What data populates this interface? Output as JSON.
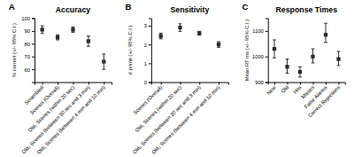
{
  "chart_data": [
    {
      "type": "scatter",
      "title": "Accuracy",
      "annotation": "A",
      "ylabel": "% correct (+/- 95% C.I.)",
      "categories": [
        "Scrambled",
        "Scenes (Overall)",
        "Old₁ Scenes (within 20 sec)",
        "Old₂ Scenes (between 30 sec and 3 min)",
        "Old₃ Scenes (between 4 min and 10 min)"
      ],
      "values": [
        91,
        85,
        91,
        82,
        66
      ],
      "error_minus": [
        3,
        2,
        2,
        4,
        6
      ],
      "error_plus": [
        3,
        2,
        2,
        4,
        6
      ],
      "ylim": [
        50,
        100
      ],
      "yticks": [
        60,
        70,
        80,
        90,
        100
      ],
      "color": "#2b2b2b",
      "marker": "square"
    },
    {
      "type": "scatter",
      "title": "Sensitivity",
      "annotation": "B",
      "ylabel": "d prime (+/- 95% C.I.)",
      "categories": [
        "Scenes (Overall)",
        "Old₁ Scenes (within 20 sec)",
        "Old₂ Scenes (between 30 sec and 3 min)",
        "Old₃ Scenes (between 4 min and 10 min)"
      ],
      "values": [
        2.45,
        2.9,
        2.6,
        2.0
      ],
      "error_minus": [
        0.15,
        0.2,
        0.1,
        0.15
      ],
      "error_plus": [
        0.15,
        0.2,
        0.1,
        0.15
      ],
      "ylim": [
        0,
        3.4
      ],
      "yticks": [
        0,
        1,
        2,
        3
      ],
      "color": "#2b2b2b",
      "marker": "square"
    },
    {
      "type": "scatter",
      "title": "Response Times",
      "annotation": "C",
      "ylabel": "Mean RT ms (+/- 95% C.I.)",
      "categories": [
        "New",
        "Old",
        "Hits",
        "Misses",
        "False Alarms",
        "Correct Rejections"
      ],
      "values": [
        1030,
        960,
        940,
        1000,
        1085,
        990
      ],
      "error_minus": [
        35,
        25,
        20,
        25,
        30,
        25
      ],
      "error_plus": [
        35,
        30,
        20,
        30,
        45,
        30
      ],
      "ylim": [
        900,
        1150
      ],
      "yticks": [
        900,
        1000,
        1100
      ],
      "color": "#2b2b2b",
      "marker": "square"
    }
  ]
}
